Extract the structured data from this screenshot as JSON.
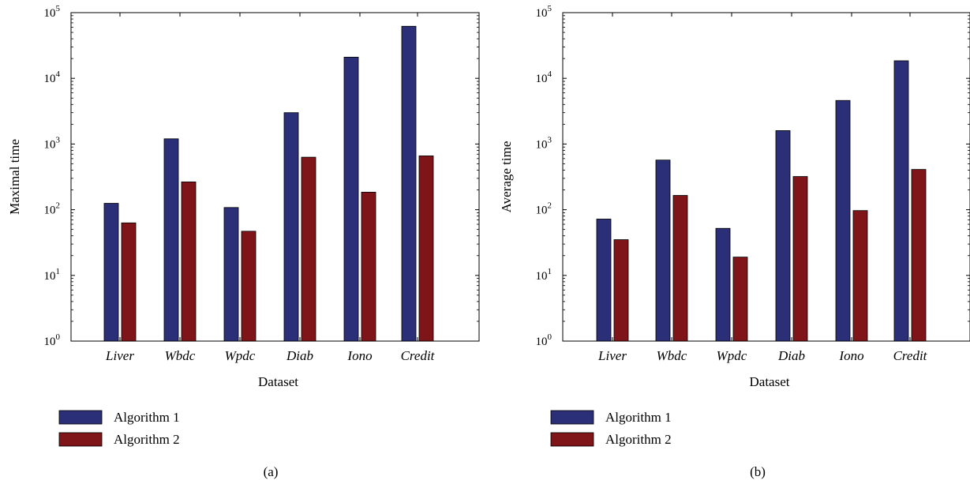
{
  "chart_data": [
    {
      "type": "bar",
      "panel": "(a)",
      "ylabel": "Maximal time",
      "xlabel": "Dataset",
      "yscale": "log",
      "ylim": [
        1,
        100000
      ],
      "yticks": [
        1,
        10,
        100,
        1000,
        10000,
        100000
      ],
      "categories": [
        "Liver",
        "Wbdc",
        "Wpdc",
        "Diab",
        "Iono",
        "Credit"
      ],
      "series": [
        {
          "name": "Algorithm 1",
          "color": "#2b2f78",
          "values": [
            125,
            1200,
            108,
            3000,
            21000,
            62000
          ]
        },
        {
          "name": "Algorithm 2",
          "color": "#7f1518",
          "values": [
            63,
            265,
            47,
            630,
            185,
            660
          ]
        }
      ],
      "legend_position": "bottom-left"
    },
    {
      "type": "bar",
      "panel": "(b)",
      "ylabel": "Average time",
      "xlabel": "Dataset",
      "yscale": "log",
      "ylim": [
        1,
        100000
      ],
      "yticks": [
        1,
        10,
        100,
        1000,
        10000,
        100000
      ],
      "categories": [
        "Liver",
        "Wbdc",
        "Wpdc",
        "Diab",
        "Iono",
        "Credit"
      ],
      "series": [
        {
          "name": "Algorithm 1",
          "color": "#2b2f78",
          "values": [
            72,
            570,
            52,
            1600,
            4600,
            18500
          ]
        },
        {
          "name": "Algorithm 2",
          "color": "#7f1518",
          "values": [
            35,
            165,
            19,
            320,
            97,
            410
          ]
        }
      ],
      "legend_position": "bottom-left"
    }
  ],
  "tick_labels": [
    "10",
    "10",
    "10",
    "10",
    "10",
    "10"
  ],
  "tick_exponents": [
    "0",
    "1",
    "2",
    "3",
    "4",
    "5"
  ]
}
